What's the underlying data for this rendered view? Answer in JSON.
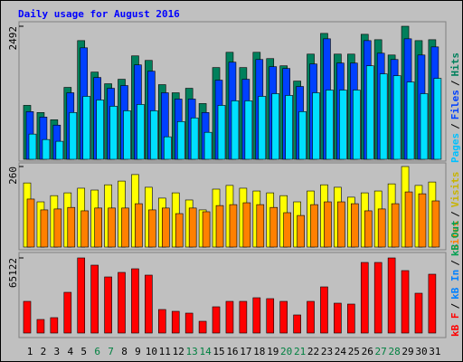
{
  "chart_data": [
    {
      "type": "bar",
      "title": "Daily usage for August 2016",
      "ylim": [
        0,
        2492
      ],
      "yticks": [
        2492
      ],
      "legend_separator": "/",
      "legend": [
        {
          "text": "Pages",
          "color": "#00c0ff"
        },
        {
          "text": "Files",
          "color": "#0040ff"
        },
        {
          "text": "Hits",
          "color": "#00805c"
        }
      ],
      "series": [
        {
          "color": "#00805c",
          "values": [
            1010,
            876,
            741,
            1347,
            2223,
            1633,
            1415,
            1499,
            1937,
            1852,
            1398,
            1246,
            1330,
            1044,
            1718,
            2004,
            1718,
            2004,
            1886,
            1751,
            1465,
            1970,
            2358,
            1970,
            1970,
            2341,
            2240,
            1953,
            2492,
            2223,
            2240
          ]
        },
        {
          "color": "#0040ff",
          "values": [
            893,
            791,
            640,
            1246,
            2088,
            1532,
            1330,
            1381,
            1768,
            1650,
            1246,
            1128,
            1128,
            876,
            1482,
            1819,
            1499,
            1869,
            1735,
            1701,
            1364,
            1785,
            2257,
            1802,
            1802,
            2223,
            1987,
            1869,
            2257,
            1953,
            2105
          ]
        },
        {
          "color": "#00e0ff",
          "values": [
            472,
            370,
            337,
            876,
            1179,
            1111,
            994,
            909,
            1027,
            909,
            421,
            707,
            775,
            505,
            1010,
            1095,
            1095,
            1179,
            1229,
            1196,
            893,
            1246,
            1297,
            1297,
            1297,
            1751,
            1600,
            1566,
            1448,
            1229,
            1516
          ]
        }
      ]
    },
    {
      "type": "bar",
      "ylim": [
        0,
        260
      ],
      "yticks": [
        260
      ],
      "legend_separator": "/",
      "legend": [
        {
          "text": "Sites",
          "color": "#ff8000"
        },
        {
          "text": "Visits",
          "color": "#c8b400"
        }
      ],
      "series": [
        {
          "color": "#ffff00",
          "values": [
            207,
            146,
            166,
            175,
            190,
            184,
            201,
            213,
            234,
            193,
            158,
            175,
            152,
            120,
            187,
            199,
            190,
            181,
            175,
            166,
            146,
            181,
            201,
            193,
            161,
            175,
            181,
            204,
            260,
            199,
            210
          ]
        },
        {
          "color": "#ff8000",
          "values": [
            155,
            120,
            123,
            128,
            117,
            126,
            126,
            126,
            140,
            120,
            126,
            108,
            126,
            114,
            134,
            137,
            143,
            137,
            128,
            111,
            102,
            137,
            146,
            146,
            140,
            117,
            123,
            140,
            178,
            172,
            149
          ]
        }
      ]
    },
    {
      "type": "bar",
      "ylim": [
        0,
        65122
      ],
      "yticks": [
        65122
      ],
      "legend_separator": "/",
      "legend": [
        {
          "text": "kB F",
          "color": "#ff0000"
        },
        {
          "text": "kB In",
          "color": "#0080ff"
        },
        {
          "text": "kB Out",
          "color": "#00a050"
        }
      ],
      "series": [
        {
          "color": "#ff0000",
          "values": [
            27461,
            11769,
            13338,
            35307,
            65122,
            58845,
            48645,
            52568,
            55707,
            50214,
            20400,
            18830,
            17261,
            10200,
            22753,
            27461,
            27461,
            30599,
            29815,
            27461,
            15692,
            27461,
            40015,
            25892,
            25107,
            61199,
            61199,
            65122,
            54137,
            34522,
            50999
          ]
        }
      ],
      "categories": [
        "1",
        "2",
        "3",
        "4",
        "5",
        "6",
        "7",
        "8",
        "9",
        "10",
        "11",
        "12",
        "13",
        "14",
        "15",
        "16",
        "17",
        "18",
        "19",
        "20",
        "21",
        "22",
        "23",
        "24",
        "25",
        "26",
        "27",
        "28",
        "29",
        "30",
        "31"
      ],
      "category_colors": [
        "#000000",
        "#000000",
        "#000000",
        "#000000",
        "#000000",
        "#008040",
        "#008040",
        "#000000",
        "#000000",
        "#000000",
        "#000000",
        "#000000",
        "#008040",
        "#008040",
        "#000000",
        "#000000",
        "#000000",
        "#000000",
        "#000000",
        "#008040",
        "#008040",
        "#000000",
        "#000000",
        "#000000",
        "#000000",
        "#000000",
        "#008040",
        "#008040",
        "#000000",
        "#000000",
        "#000000"
      ]
    }
  ]
}
